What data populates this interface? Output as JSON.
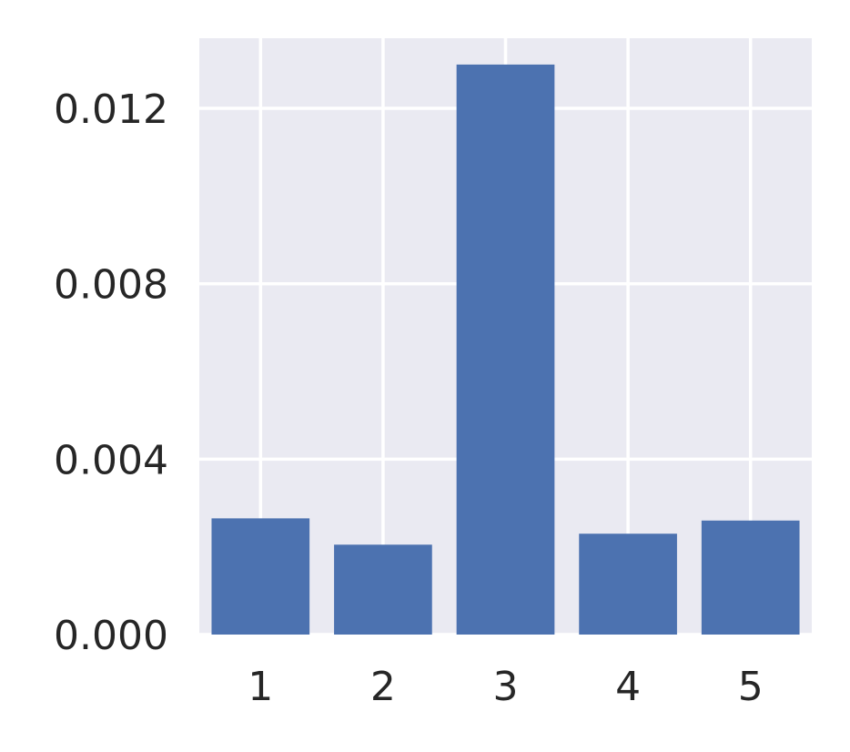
{
  "chart_data": {
    "type": "bar",
    "categories": [
      "1",
      "2",
      "3",
      "4",
      "5"
    ],
    "values": [
      0.00265,
      0.00205,
      0.013,
      0.0023,
      0.0026
    ],
    "title": "",
    "xlabel": "",
    "ylabel": "",
    "ylim": [
      0,
      0.0136
    ],
    "yticks": [
      0.0,
      0.004,
      0.008,
      0.012
    ],
    "ytick_labels": [
      "0.000",
      "0.004",
      "0.008",
      "0.012"
    ],
    "grid": true,
    "colors": {
      "bar": "#4c72b0",
      "background": "#eaeaf2",
      "grid": "#ffffff",
      "text": "#262626"
    }
  }
}
